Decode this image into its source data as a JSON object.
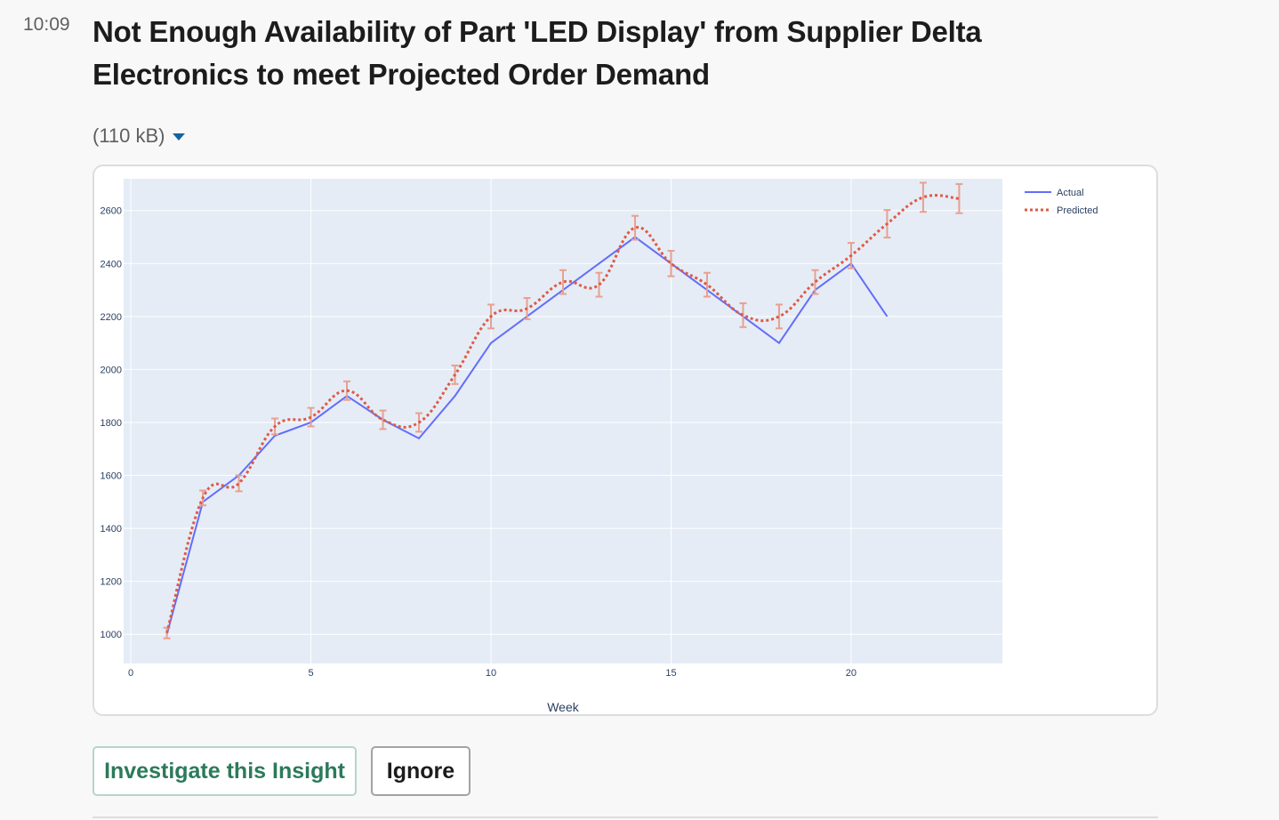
{
  "message": {
    "time": "10:09",
    "title": "Not Enough Availability of Part 'LED Display' from Supplier Delta Electronics to meet Projected Order Demand",
    "file_size": "(110 kB)"
  },
  "actions": {
    "investigate_label": "Investigate this Insight",
    "ignore_label": "Ignore"
  },
  "colors": {
    "actual": "#636efa",
    "predicted": "#dd5b45",
    "error_bar": "#e8a090",
    "plot_bg": "#e5ecf6"
  },
  "chart_data": {
    "type": "line",
    "title": "",
    "xlabel": "Week",
    "ylabel": "",
    "xlim": [
      -0.2,
      24.2
    ],
    "ylim": [
      890,
      2720
    ],
    "x_ticks": [
      0,
      5,
      10,
      15,
      20
    ],
    "y_ticks": [
      1000,
      1200,
      1400,
      1600,
      1800,
      2000,
      2200,
      2400,
      2600
    ],
    "grid": true,
    "legend_position": "top-right",
    "series": [
      {
        "name": "Actual",
        "style": "solid",
        "x": [
          1,
          2,
          3,
          4,
          5,
          6,
          7,
          8,
          9,
          10,
          11,
          12,
          13,
          14,
          15,
          16,
          17,
          18,
          19,
          20,
          21
        ],
        "y": [
          1000,
          1500,
          1600,
          1750,
          1800,
          1900,
          1810,
          1740,
          1900,
          2100,
          2200,
          2300,
          2400,
          2500,
          2400,
          2300,
          2200,
          2100,
          2300,
          2400,
          2200
        ]
      },
      {
        "name": "Predicted",
        "style": "dotted",
        "x": [
          1,
          2,
          3,
          4,
          5,
          6,
          7,
          8,
          9,
          10,
          11,
          12,
          13,
          14,
          15,
          16,
          17,
          18,
          19,
          20,
          21,
          22,
          23
        ],
        "y": [
          1005,
          1515,
          1570,
          1785,
          1820,
          1920,
          1810,
          1800,
          1980,
          2200,
          2230,
          2330,
          2320,
          2535,
          2400,
          2320,
          2205,
          2200,
          2330,
          2430,
          2550,
          2650,
          2645
        ],
        "error": [
          20,
          28,
          30,
          30,
          35,
          35,
          35,
          35,
          35,
          45,
          40,
          45,
          45,
          45,
          48,
          45,
          45,
          45,
          45,
          48,
          52,
          55,
          55
        ]
      }
    ]
  }
}
